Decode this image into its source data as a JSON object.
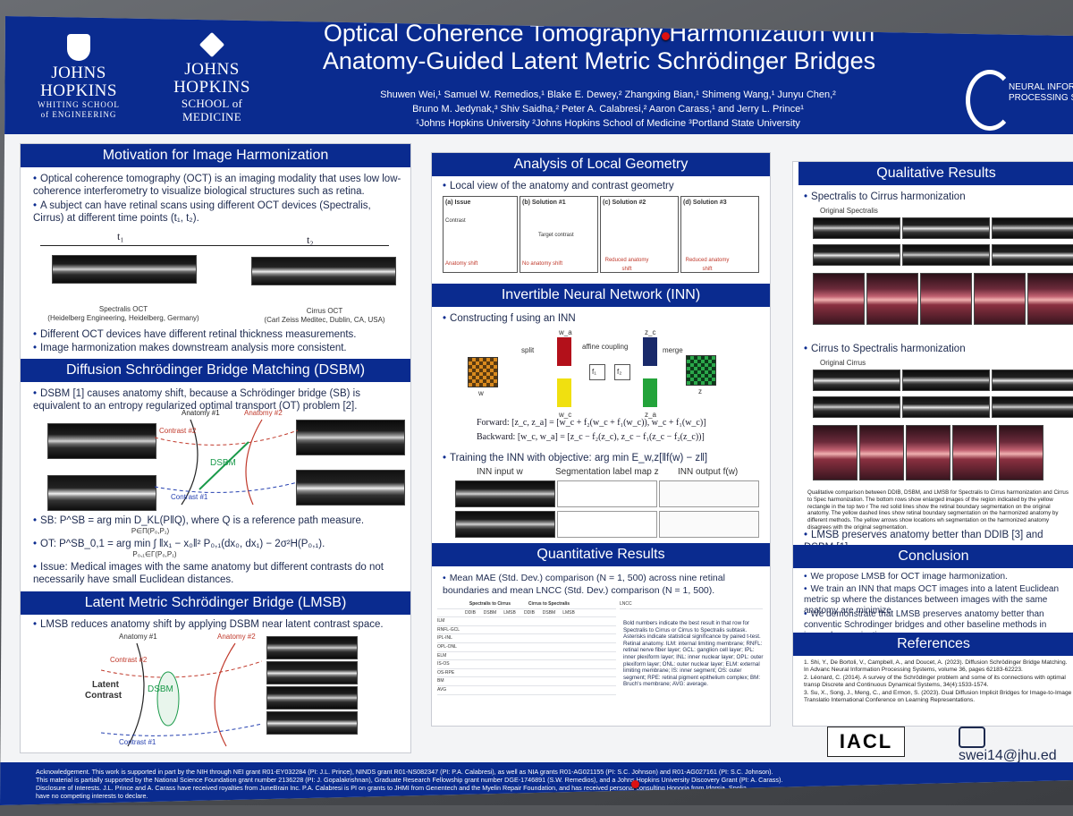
{
  "header": {
    "jhu_whiting": {
      "line1": "JOHNS HOPKINS",
      "line2": "WHITING SCHOOL",
      "line3": "of ENGINEERING"
    },
    "jhu_medicine": {
      "line1": "JOHNS HOPKINS",
      "line2": "SCHOOL of MEDICINE"
    },
    "title_line1": "Optical Coherence Tomography Harmonization with",
    "title_line2": "Anatomy-Guided Latent Metric Schrödinger Bridges",
    "authors_line1": "Shuwen Wei,¹ Samuel W. Remedios,¹ Blake E. Dewey,² Zhangxing Bian,¹ Shimeng Wang,¹ Junyu Chen,²",
    "authors_line2": "Bruno M. Jedynak,³ Shiv Saidha,² Peter A. Calabresi,² Aaron Carass,¹ and Jerry L. Prince¹",
    "affiliations": "¹Johns Hopkins University  ²Johns Hopkins School of Medicine  ³Portland State University",
    "nips_line1": "NEURAL INFORM",
    "nips_line2": "PROCESSING SY"
  },
  "motivation": {
    "heading": "Motivation for Image Harmonization",
    "b1": "Optical coherence tomography (OCT) is an imaging modality that uses low low-coherence interferometry to visualize biological structures such as retina.",
    "b2": "A subject can have retinal scans using different OCT devices (Spectralis, Cirrus) at different time points (t₁, t₂).",
    "t1": "t₁",
    "t2": "t₂",
    "cap1a": "Spectralis OCT",
    "cap1b": "(Heidelberg Engineering, Heidelberg, Germany)",
    "cap2a": "Cirrus OCT",
    "cap2b": "(Carl Zeiss Meditec, Dublin, CA, USA)",
    "b3": "Different OCT devices have different retinal thickness measurements.",
    "b4": "Image harmonization makes downstream analysis more consistent."
  },
  "dsbm": {
    "heading": "Diffusion Schrödinger Bridge Matching (DSBM)",
    "b1": "DSBM [1] causes anatomy shift, because a Schrödinger bridge (SB) is equivalent to an entropy regularized optimal transport (OT) problem [2].",
    "anat1": "Anatomy #1",
    "anat2": "Anatomy #2",
    "contrast2": "Contrast #2",
    "contrast1": "Contrast #1",
    "dsbm_label": "DSBM",
    "sb": "SB: P^SB = arg min D_KL(P‖Q), where Q is a reference path measure.",
    "sb_sub": "P∈Π(P₀,P₁)",
    "ot": "OT: P^SB_0,1 = arg min ∫ ‖x₁ − x₀‖² P₀,₁(dx₀, dx₁) − 2σ²H(P₀,₁).",
    "ot_sub": "P₀,₁∈Γ(P₀,P₁)",
    "issue": "Issue: Medical images with the same anatomy but different contrasts do not necessarily have small Euclidean distances."
  },
  "lmsb": {
    "heading": "Latent Metric Schrödinger Bridge (LMSB)",
    "b1": "LMSB reduces anatomy shift by applying DSBM near latent contrast space.",
    "anat1": "Anatomy #1",
    "anat2": "Anatomy #2",
    "contrast2": "Contrast #2",
    "contrast1": "Contrast #1",
    "latent": "Latent",
    "contrast_word": "Contrast",
    "dsbm_label": "DSBM"
  },
  "ack": {
    "line1": "Acknowledgement. This work is supported in part by the NIH through NEI grant R01-EY032284 (PI: J.L. Prince), NINDS grant R01-NS082347 (PI: P.A. Calabresi), as well as NIA grants R01-AG021155 (PI: S.C. Johnson) and R01-AG027161 (PI: S.C. Johnson).",
    "line2": "This material is partially supported by the National Science Foundation grant number 2136228 (PI: J. Gopalakrishnan), Graduate Research Fellowship grant number DGE-1746891 (S.W. Remedios), and a Johns Hopkins University Discovery Grant (PI: A. Carass).",
    "line3": "Disclosure of Interests. J.L. Prince and A. Carass have received royalties from JuneBrain Inc. P.A. Calabresi is PI on grants to JHMI from Genentech and the Myelin Repair Foundation, and has received personal consulting Honoria from Idorsia, Spolia",
    "line4": "have no competing interests to declare."
  },
  "local": {
    "heading": "Analysis of Local Geometry",
    "b1": "Local view of the anatomy and contrast geometry",
    "a": "(a) Issue",
    "b": "(b) Solution #1",
    "c": "(c) Solution #2",
    "d": "(d) Solution #3",
    "anatomy_shift": "Anatomy shift",
    "no_anatomy_shift": "No anatomy shift",
    "reduced_shift": "Reduced anatomy shift",
    "target_contrast": "Target contrast",
    "contrast": "Contrast",
    "anatomy": "Anatomy"
  },
  "inn": {
    "heading": "Invertible Neural Network (INN)",
    "b1": "Constructing f using an INN",
    "split": "split",
    "affine": "affine coupling",
    "merge": "merge",
    "wa": "w_a",
    "wc": "w_c",
    "za": "z_a",
    "zc": "z_c",
    "w": "w",
    "z": "z",
    "f1": "f₁",
    "f2": "f₂",
    "forward": "Forward: [z_c, z_a] = [w_c + f₂(w_c + f₁(w_c)), w_c + f₁(w_c)]",
    "backward": "Backward: [w_c, w_a] = [z_c − f₂(z_c), z_c − f₁(z_c − f₂(z_c))]",
    "b2": "Training the INN with objective: arg min E_w,z[‖f(w) − z‖]",
    "col1": "INN input w",
    "col2": "Segmentation label map z",
    "col3": "INN output f(w)",
    "la": "(a)",
    "lb": "(b)",
    "lc": "(c)",
    "ld": "(d)",
    "le": "(e)",
    "lf": "(f)"
  },
  "quant": {
    "heading": "Quantitative Results",
    "b1": "Mean MAE (Std. Dev.) comparison (N = 1, 500) across nine retinal boundaries and mean LNCC (Std. Dev.) comparison (N = 1, 500).",
    "table_title1": "Spectralis to Cirrus",
    "table_title2": "Cirrus to Spectralis",
    "methods": [
      "DDIB",
      "DSBM",
      "LMSB",
      "DDIB",
      "DSBM",
      "LMSB"
    ],
    "rows": [
      "ILM",
      "RNFL-GCL",
      "IPL-INL",
      "OPL-ONL",
      "ELM",
      "IS-OS",
      "OS-RPE",
      "BM",
      "AVG"
    ],
    "note1": "Bold numbers indicate the best result in that row for Spectralis to Cirrus or Cirrus to Spectralis subtask.",
    "note2": "Asterisks indicate statistical significance by paired t-test.",
    "note3": "Retinal anatomy. ILM: internal limiting membrane; RNFL: retinal nerve fiber layer; GCL: ganglion cell layer; IPL: inner plexiform layer; INL: inner nuclear layer; OPL: outer plexiform layer; ONL: outer nuclear layer; ELM: external limiting membrane; IS: inner segment; OS: outer segment; RPE: retinal pigment epithelium complex; BM: Bruch's membrane; AVG: average.",
    "lncc": "LNCC"
  },
  "qual": {
    "heading": "Qualitative Results",
    "b1": "Spectralis to Cirrus harmonization",
    "b2": "Cirrus to Spectralis harmonization",
    "orig_spec": "Original Spectralis",
    "orig_cirrus": "Original Cirrus",
    "caption": "Qualitative comparison between DDIB, DSBM, and LMSB for Spectralis to Cirrus harmonization and Cirrus to Spec harmonization. The bottom rows show enlarged images of the region indicated by the yellow rectangle in the top two r The red solid lines show the retinal boundary segmentation on the original anatomy. The yellow dashed lines show retinal boundary segmentation on the harmonized anatomy by different methods. The yellow arrows show locations wh segmentation on the harmonized anatomy disagrees with the original segmentation.",
    "b3": "LMSB preserves anatomy better than DDIB [3] and DSBM [1]."
  },
  "conclusion": {
    "heading": "Conclusion",
    "b1": "We propose LMSB for OCT image harmonization.",
    "b2": "We train an INN that maps OCT images into a latent Euclidean metric sp where the distances between images with the same anatomy are minimize",
    "b3": "We demonstrate that LMSB preserves anatomy better than conventic Schrodinger bridges and other baseline methods in image harmonization."
  },
  "references": {
    "heading": "References",
    "r1": "1. Shi, Y., De Bortoli, V., Campbell, A., and Doucet, A. (2023). Diffusion Schrödinger Bridge Matching. In Advanc Neural Information Processing Systems, volume 36, pages 62183-62223.",
    "r2": "2. Léonard, C. (2014). A survey of the Schrödinger problem and some of its connections with optimal transp Discrete and Continuous Dynamical Systems, 34(4):1533-1574.",
    "r3": "3. Su, X., Song, J., Meng, C., and Ermon, S. (2023). Dual Diffusion Implicit Bridges for Image-to-Image Translatio International Conference on Learning Representations."
  },
  "footer": {
    "iacl": "IACL",
    "email": "swei14@jhu.ed"
  }
}
